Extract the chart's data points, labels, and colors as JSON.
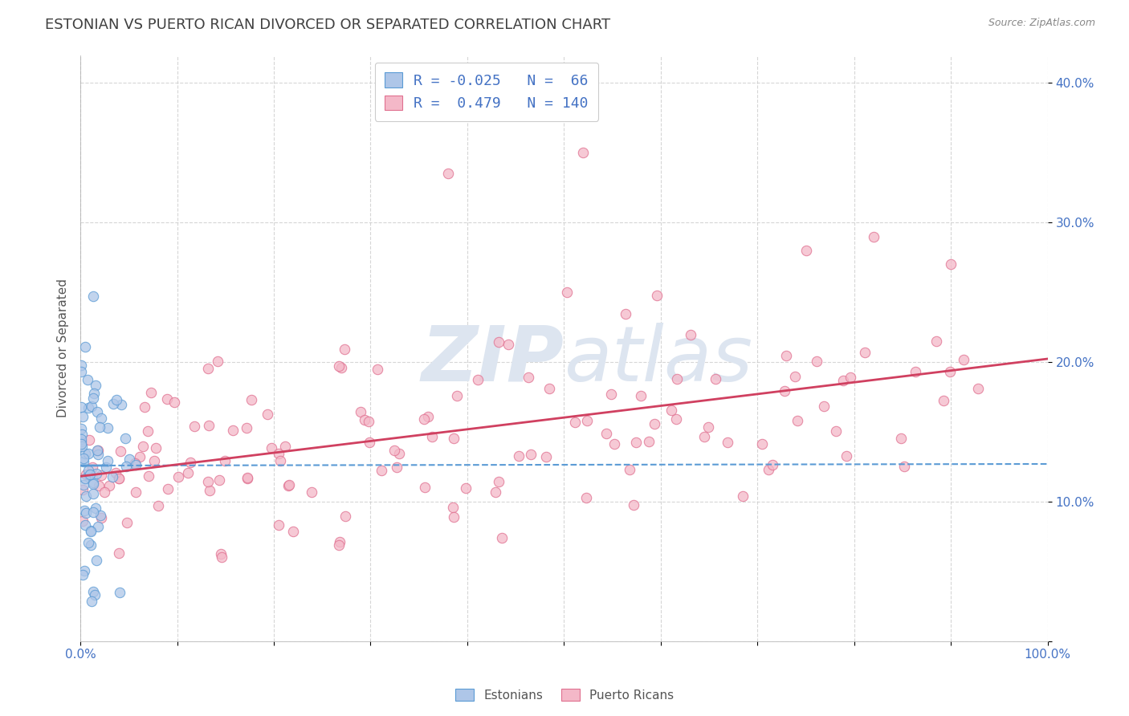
{
  "title": "ESTONIAN VS PUERTO RICAN DIVORCED OR SEPARATED CORRELATION CHART",
  "source_text": "Source: ZipAtlas.com",
  "ylabel": "Divorced or Separated",
  "xlim": [
    0.0,
    100.0
  ],
  "ylim": [
    0.0,
    42.0
  ],
  "ytick_values": [
    0,
    10,
    20,
    30,
    40
  ],
  "ytick_labels": [
    "",
    "10.0%",
    "20.0%",
    "30.0%",
    "40.0%"
  ],
  "xtick_values": [
    0,
    10,
    20,
    30,
    40,
    50,
    60,
    70,
    80,
    90,
    100
  ],
  "xtick_labels": [
    "0.0%",
    "",
    "",
    "",
    "",
    "",
    "",
    "",
    "",
    "",
    "100.0%"
  ],
  "legend_r_estonian": "-0.025",
  "legend_n_estonian": "66",
  "legend_r_puerto": "0.479",
  "legend_n_puerto": "140",
  "estonian_fill": "#aec6e8",
  "estonian_edge": "#5b9bd5",
  "puerto_fill": "#f4b8c8",
  "puerto_edge": "#e07090",
  "estonian_line_color": "#5b9bd5",
  "puerto_line_color": "#d04060",
  "title_color": "#404040",
  "legend_text_color": "#4472C4",
  "axis_label_color": "#4472C4",
  "background_color": "#ffffff",
  "watermark_color": "#dde5f0"
}
